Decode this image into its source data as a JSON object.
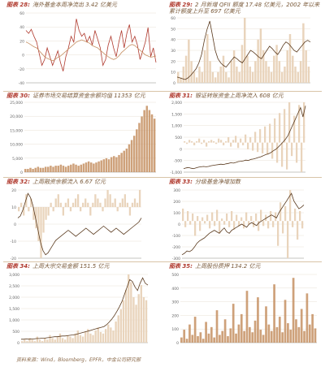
{
  "colors": {
    "accent": "#b03a2e",
    "primary": "#c69063",
    "dark": "#5a3a1e",
    "light": "#e9d4bc",
    "grid": "#e8e0d6"
  },
  "panels": [
    {
      "label": "图表 28:",
      "title": "海外基金本周净流出 3.42 亿美元"
    },
    {
      "label": "图表 29:",
      "title": "2 月新增 QFII 额度 17.48 亿美元，2002 年以来累计额度上升至 697 亿美元"
    },
    {
      "label": "图表 30:",
      "title": "证券市场交易结算资金余额均值 11353 亿元"
    },
    {
      "label": "图表 31:",
      "title": "银证转账资金上周净流入 608 亿元"
    },
    {
      "label": "图表 32:",
      "title": "上周融资余额流入 6.67 亿元"
    },
    {
      "label": "图表 33:",
      "title": "分级基金净增加数"
    },
    {
      "label": "图表 34:",
      "title": "上周大宗交易金额 151.5 亿元"
    },
    {
      "label": "图表 35:",
      "title": "上周股份质押 134.2 亿元"
    }
  ],
  "source": "资料来源：Wind，Bloomberg，EPFR，中金公司研究部",
  "chart_data": [
    {
      "type": "line",
      "series": [
        {
          "color": "#b03a2e",
          "values": [
            40,
            35,
            42,
            30,
            20,
            0,
            -20,
            -10,
            10,
            -5,
            -20,
            -8,
            5,
            -15,
            -30,
            -5,
            10,
            30,
            20,
            60,
            40,
            30,
            35,
            20,
            30,
            15,
            40,
            25,
            10,
            -20,
            -10,
            15,
            30,
            10,
            -5,
            20,
            40,
            10,
            35,
            50,
            20,
            30,
            15,
            -10,
            5,
            20,
            45,
            -5,
            10,
            -15
          ]
        },
        {
          "color": "#c69063",
          "values": [
            20,
            18,
            15,
            12,
            10,
            5,
            0,
            -5,
            -8,
            -10,
            -12,
            -10,
            -6,
            -4,
            0,
            4,
            8,
            12,
            16,
            20,
            22,
            24,
            22,
            20,
            18,
            14,
            12,
            10,
            6,
            2,
            -2,
            -5,
            -8,
            -10,
            -8,
            -4,
            2,
            6,
            10,
            14,
            16,
            14,
            10,
            6,
            2,
            -2,
            -4,
            -6,
            -5,
            -4
          ]
        }
      ],
      "yticks": [
        "60",
        "40",
        "20",
        "0",
        "-20",
        "-40"
      ],
      "ylim": [
        -50,
        70
      ]
    },
    {
      "type": "bar_line",
      "bars": [
        2,
        1,
        3,
        5,
        8,
        4,
        2,
        1,
        3,
        2,
        6,
        9,
        4,
        2,
        1,
        2,
        3,
        5,
        2,
        1,
        4,
        6,
        3,
        2,
        7,
        12,
        5,
        3,
        2,
        4,
        8,
        10,
        6,
        4,
        3,
        2,
        5,
        7,
        4,
        2,
        3,
        6,
        9,
        5,
        3,
        2,
        4,
        11,
        6,
        3
      ],
      "line": [
        0.28,
        0.27,
        0.26,
        0.25,
        0.27,
        0.3,
        0.34,
        0.38,
        0.45,
        0.55,
        0.72,
        0.85,
        0.95,
        0.78,
        0.6,
        0.5,
        0.45,
        0.42,
        0.4,
        0.44,
        0.48,
        0.52,
        0.5,
        0.47,
        0.45,
        0.5,
        0.55,
        0.6,
        0.58,
        0.55,
        0.52,
        0.5,
        0.55,
        0.6,
        0.65,
        0.62,
        0.58,
        0.55,
        0.6,
        0.66,
        0.7,
        0.68,
        0.64,
        0.6,
        0.58,
        0.62,
        0.66,
        0.7,
        0.72,
        0.7
      ],
      "yticks": [
        "60",
        "50",
        "40",
        "30",
        "20",
        "10",
        "0"
      ]
    },
    {
      "type": "bar",
      "values": [
        3,
        3,
        4,
        3,
        4,
        5,
        4,
        4,
        5,
        5,
        6,
        5,
        6,
        6,
        7,
        6,
        5,
        6,
        7,
        8,
        7,
        6,
        7,
        8,
        9,
        10,
        9,
        8,
        9,
        10,
        11,
        12,
        13,
        12,
        14,
        15,
        14,
        16,
        18,
        20,
        22,
        26,
        30,
        34,
        40,
        46,
        52,
        58,
        62,
        58,
        54,
        50
      ],
      "yticks": [
        "25,000",
        "20,000",
        "15,000",
        "10,000",
        "5,000",
        "0"
      ]
    },
    {
      "type": "bar_line",
      "bars": [
        1,
        -1,
        2,
        1,
        -2,
        1,
        3,
        -1,
        2,
        -3,
        1,
        2,
        1,
        -1,
        3,
        2,
        -2,
        1,
        4,
        -3,
        2,
        5,
        -4,
        3,
        -2,
        6,
        -5,
        4,
        -6,
        8,
        -7,
        10,
        -8,
        12,
        -9,
        14,
        -12,
        18,
        -15,
        22,
        -18,
        25,
        -20,
        30,
        -10,
        20,
        -15,
        28,
        -22,
        30
      ],
      "line": [
        2,
        2.2,
        2.3,
        2.1,
        2,
        2.2,
        2.4,
        2.5,
        2.6,
        2.5,
        2.6,
        2.8,
        2.9,
        3,
        3.1,
        3.2,
        3.1,
        3.3,
        3.4,
        3.6,
        3.5,
        3.7,
        3.9,
        4,
        4.1,
        4.3,
        4.2,
        4.5,
        4.6,
        4.8,
        5,
        5.2,
        5.5,
        5.8,
        6,
        6.3,
        6.8,
        7.2,
        7.8,
        8.5,
        9.2,
        10,
        11,
        12.5,
        14,
        15.5,
        17,
        18.5,
        16,
        19
      ],
      "yticks": [
        "2,000",
        "1,500",
        "1,000",
        "500",
        "0",
        "-500",
        "-1,000"
      ]
    },
    {
      "type": "bar_line",
      "bars": [
        -1,
        1,
        -2,
        3,
        -1,
        2,
        -3,
        -5,
        -8,
        -12,
        -6,
        -3,
        -2,
        1,
        -1,
        2,
        3,
        1,
        -2,
        1,
        2,
        -1,
        1,
        2,
        3,
        -1,
        1,
        2,
        1,
        -2,
        1,
        3,
        2,
        1,
        -1,
        2,
        4,
        3,
        1,
        2,
        -1,
        1,
        2,
        3,
        1,
        -2,
        1,
        2,
        1,
        4
      ],
      "line": [
        8,
        9,
        12,
        16,
        20,
        18,
        14,
        8,
        2,
        -4,
        -8,
        -10,
        -9,
        -7,
        -5,
        -3,
        -2,
        -1,
        0,
        1,
        2,
        1,
        0,
        -1,
        0,
        1,
        2,
        3,
        2,
        1,
        0,
        1,
        2,
        3,
        4,
        3,
        2,
        1,
        2,
        3,
        2,
        1,
        0,
        1,
        2,
        3,
        4,
        5,
        6,
        8
      ],
      "yticks": [
        "20",
        "10",
        "0",
        "-10",
        "-20"
      ]
    },
    {
      "type": "bar_line",
      "bars": [
        10,
        -5,
        8,
        -3,
        6,
        -12,
        4,
        -8,
        3,
        -2,
        5,
        -6,
        7,
        -4,
        9,
        -10,
        2,
        -3,
        6,
        -5,
        8,
        -7,
        5,
        -4,
        3,
        -6,
        7,
        -3,
        4,
        -5,
        6,
        -8,
        9,
        -4,
        5,
        -6,
        8,
        -5,
        7,
        -20,
        15,
        -10,
        12,
        -30,
        25,
        -5,
        10,
        -15,
        8,
        -6
      ],
      "line": [
        0.3,
        0.32,
        0.35,
        0.34,
        0.36,
        0.4,
        0.45,
        0.48,
        0.5,
        0.52,
        0.55,
        0.58,
        0.6,
        0.62,
        0.6,
        0.58,
        0.62,
        0.65,
        0.6,
        0.58,
        0.62,
        0.64,
        0.66,
        0.68,
        0.7,
        0.68,
        0.66,
        0.7,
        0.72,
        0.7,
        0.68,
        0.72,
        0.74,
        0.76,
        0.78,
        0.8,
        0.82,
        0.8,
        0.78,
        0.85,
        0.9,
        0.95,
        1.0,
        1.05,
        1.1,
        1.0,
        0.95,
        0.9,
        0.92,
        0.95
      ],
      "yticks": [
        "300",
        "200",
        "100",
        "0",
        "-100",
        "-200",
        "-300"
      ]
    },
    {
      "type": "bar_line",
      "bars": [
        1,
        2,
        1,
        3,
        2,
        1,
        4,
        2,
        1,
        3,
        2,
        5,
        3,
        2,
        4,
        6,
        3,
        2,
        5,
        4,
        3,
        6,
        8,
        5,
        4,
        7,
        9,
        6,
        5,
        8,
        10,
        7,
        6,
        9,
        12,
        10,
        8,
        14,
        18,
        22,
        28,
        35,
        45,
        40,
        30,
        25,
        32,
        38,
        30,
        28
      ],
      "line": [
        5,
        5,
        6,
        5,
        6,
        6,
        7,
        7,
        8,
        8,
        9,
        10,
        11,
        12,
        12,
        13,
        14,
        14,
        15,
        16,
        17,
        18,
        20,
        22,
        24,
        26,
        28,
        30,
        32,
        34,
        36,
        38,
        40,
        45,
        52,
        60,
        70,
        82,
        95,
        110,
        130,
        150,
        170,
        165,
        150,
        140,
        160,
        175,
        160,
        155
      ],
      "yticks": [
        "3,000",
        "2,500",
        "2,000",
        "1,500",
        "1,000",
        "500",
        "0"
      ]
    },
    {
      "type": "bar",
      "values": [
        4,
        10,
        3,
        14,
        6,
        20,
        5,
        8,
        3,
        16,
        7,
        12,
        4,
        25,
        6,
        9,
        18,
        5,
        11,
        30,
        7,
        14,
        22,
        9,
        40,
        12,
        8,
        17,
        35,
        10,
        6,
        28,
        14,
        9,
        45,
        12,
        20,
        8,
        33,
        15,
        10,
        50,
        18,
        12,
        26,
        9,
        38,
        14,
        22,
        11
      ],
      "yticks": [
        "500",
        "400",
        "300",
        "200",
        "100",
        "0"
      ]
    }
  ]
}
